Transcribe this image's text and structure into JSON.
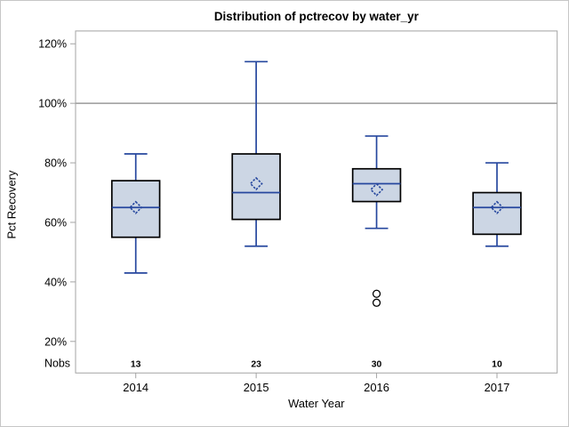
{
  "figure": {
    "title": "Distribution of pctrecov by water_yr",
    "xlabel": "Water Year",
    "ylabel": "Pct Recovery",
    "nobs_label": "Nobs"
  },
  "chart_data": {
    "type": "boxplot",
    "title": "Distribution of pctrecov by water_yr",
    "xlabel": "Water Year",
    "ylabel": "Pct Recovery",
    "categories": [
      "2014",
      "2015",
      "2016",
      "2017"
    ],
    "nobs_row_label": "Nobs",
    "nobs": [
      13,
      23,
      30,
      10
    ],
    "y_ticks": [
      20,
      40,
      60,
      80,
      100,
      120
    ],
    "y_tick_suffix": "%",
    "ylim": [
      9.4,
      124.3
    ],
    "reference_line": 100,
    "grid": false,
    "legend": "none",
    "series": [
      {
        "category": "2014",
        "n": 13,
        "whisker_low": 43,
        "q1": 55,
        "median": 65,
        "q3": 74,
        "whisker_high": 83,
        "mean": 65,
        "outliers": []
      },
      {
        "category": "2015",
        "n": 23,
        "whisker_low": 52,
        "q1": 61,
        "median": 70,
        "q3": 83,
        "whisker_high": 114,
        "mean": 73,
        "outliers": []
      },
      {
        "category": "2016",
        "n": 30,
        "whisker_low": 58,
        "q1": 67,
        "median": 73,
        "q3": 78,
        "whisker_high": 89,
        "mean": 71,
        "outliers": [
          36,
          33
        ]
      },
      {
        "category": "2017",
        "n": 10,
        "whisker_low": 52,
        "q1": 56,
        "median": 65,
        "q3": 70,
        "whisker_high": 80,
        "mean": 65,
        "outliers": []
      }
    ],
    "colors": {
      "box_fill": "#ccd6e4",
      "box_border": "#000000",
      "line_blue": "#26479e",
      "frame_gray": "#a3a3a3",
      "ref_line_gray": "#9a9a9a",
      "outlier": "#000000",
      "text": "#000000",
      "background": "#ffffff"
    }
  }
}
